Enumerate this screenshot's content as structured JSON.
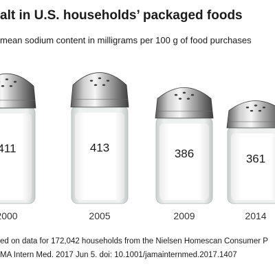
{
  "header": {
    "title": "alt in U.S. households’ packaged foods",
    "subtitle": "mean sodium content in milligrams per 100 g of food purchases"
  },
  "footer": {
    "source_line_1": "ed on data for 172,042 households from the Nielsen Homescan Consumer P",
    "source_line_2": "MA Intern Med. 2017 Jun 5. doi: 10.1001/jamainternmed.2017.1407"
  },
  "chart_data": {
    "type": "bar",
    "categories": [
      "2000",
      "2005",
      "2009",
      "2014"
    ],
    "values": [
      411,
      413,
      386,
      361
    ],
    "value_labels": [
      "411",
      "413",
      "386",
      "361"
    ],
    "title": "alt in U.S. households’ packaged foods",
    "subtitle": "mean sodium content in milligrams per 100 g of food purchases",
    "xlabel": "",
    "ylabel": "",
    "grid": false,
    "legend": "none",
    "mark_style": "salt shakers",
    "colors": {
      "cap_light": "#f4f4f4",
      "cap_mid": "#a9a9a9",
      "cap_dark": "#4a4a4a",
      "glass": "#e3e8e7",
      "salt": "#fbfbfb",
      "text": "#1a1a1a"
    }
  }
}
